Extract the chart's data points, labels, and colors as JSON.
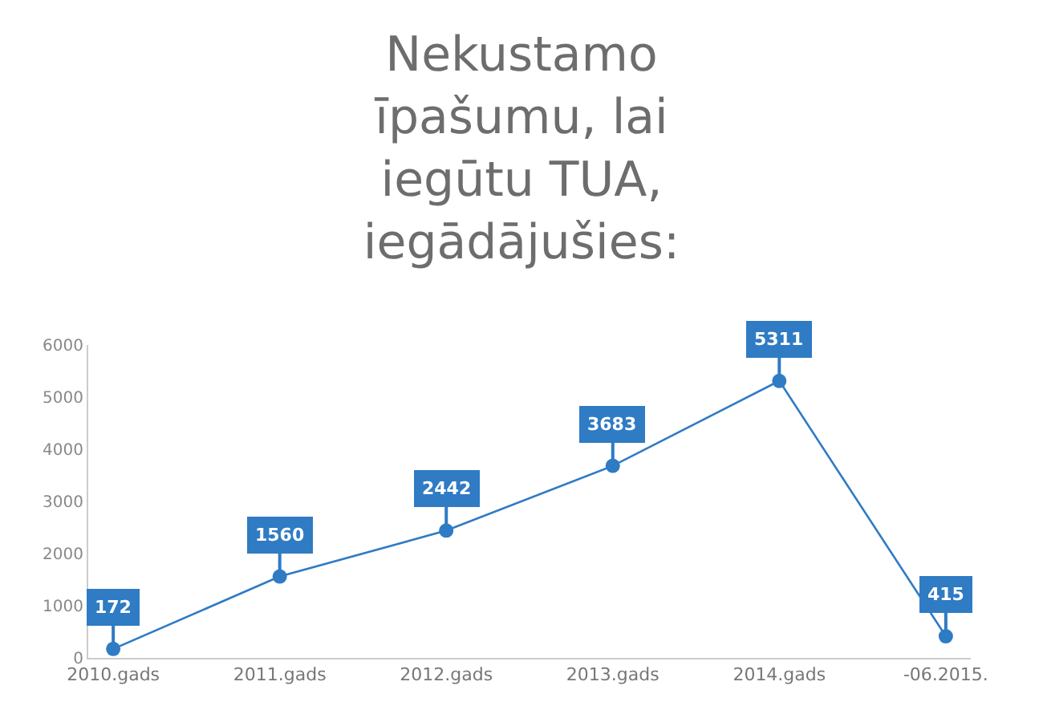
{
  "chart_data": {
    "type": "line",
    "title": "Nekustamo\nīpašumu, lai\niegūtu TUA,\niegādājušies:",
    "categories": [
      "2010.gads",
      "2011.gads",
      "2012.gads",
      "2013.gads",
      "2014.gads",
      "-06.2015."
    ],
    "series": [
      {
        "color": "#2f7bc4",
        "values": [
          172,
          1560,
          2442,
          3683,
          5311,
          415
        ]
      }
    ],
    "ylim": [
      0,
      6000
    ],
    "yticks": [
      0,
      1000,
      2000,
      3000,
      4000,
      5000,
      6000
    ],
    "legend": false,
    "marker": "circle",
    "line_style": "solid",
    "data_labels": true
  }
}
